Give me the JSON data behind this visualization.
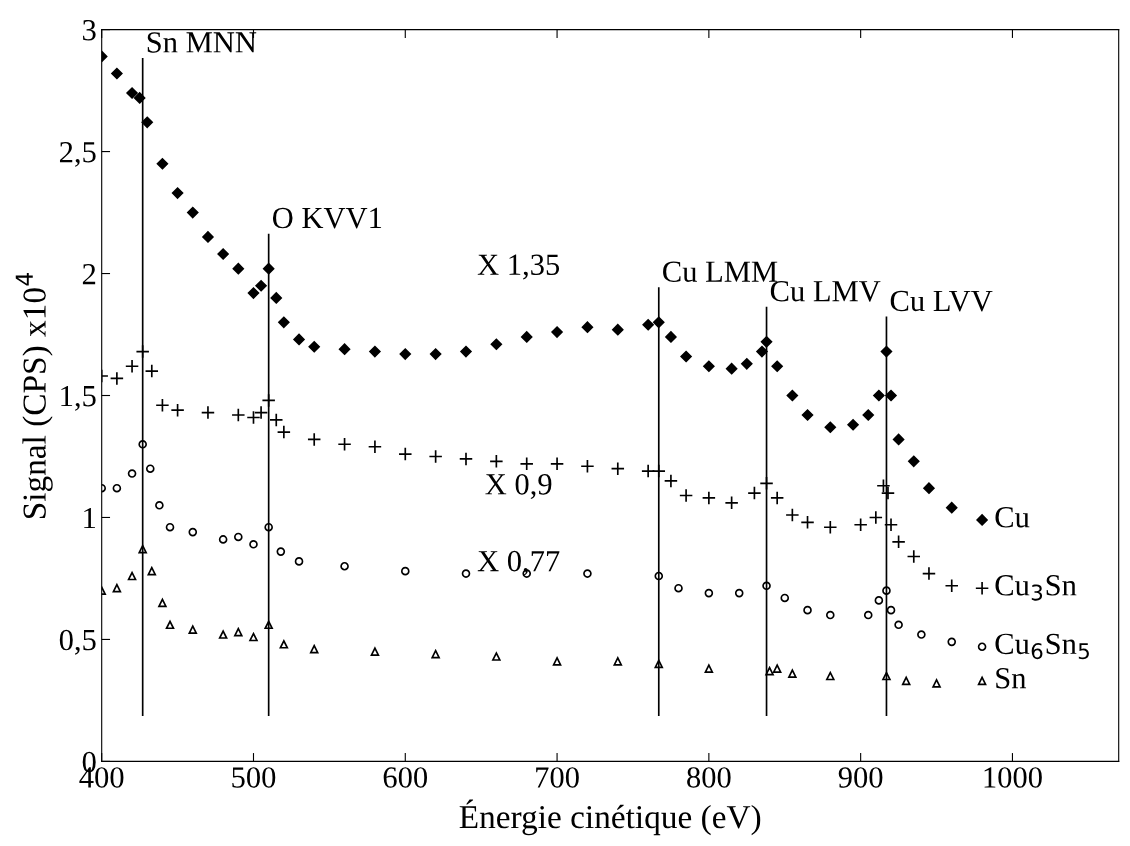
{
  "chart_data": {
    "type": "scatter",
    "xlabel": "Énergie cinétique (eV)",
    "ylabel": "Signal (CPS) x10$^{4}$",
    "xlim": [
      400,
      1070
    ],
    "xticks": [
      400,
      500,
      600,
      700,
      800,
      900,
      1000
    ],
    "ylim": [
      0,
      3
    ],
    "yticks": [
      0,
      {
        "value": 0.5,
        "label": "0,5"
      },
      1,
      {
        "value": 1.5,
        "label": "1,5"
      },
      2,
      {
        "value": 2.5,
        "label": "2,5"
      },
      3
    ],
    "grid": false,
    "legend": false,
    "series": [
      {
        "name": "Cu",
        "color": "#000000",
        "marker": "diamond",
        "x": [
          400,
          410,
          420,
          425,
          430,
          440,
          450,
          460,
          470,
          480,
          490,
          500,
          505,
          510,
          515,
          520,
          530,
          540,
          560,
          580,
          600,
          620,
          640,
          660,
          680,
          700,
          720,
          740,
          760,
          767,
          775,
          785,
          800,
          815,
          825,
          835,
          838,
          845,
          855,
          865,
          880,
          895,
          905,
          912,
          917,
          920,
          925,
          935,
          945,
          960,
          980
        ],
        "values": [
          2.89,
          2.82,
          2.74,
          2.72,
          2.62,
          2.45,
          2.33,
          2.25,
          2.15,
          2.08,
          2.02,
          1.92,
          1.95,
          2.02,
          1.9,
          1.8,
          1.73,
          1.7,
          1.69,
          1.68,
          1.67,
          1.67,
          1.68,
          1.71,
          1.74,
          1.76,
          1.78,
          1.77,
          1.79,
          1.8,
          1.74,
          1.66,
          1.62,
          1.61,
          1.63,
          1.68,
          1.72,
          1.62,
          1.5,
          1.42,
          1.37,
          1.38,
          1.42,
          1.5,
          1.68,
          1.5,
          1.32,
          1.23,
          1.12,
          1.04,
          0.99
        ]
      },
      {
        "name": "Cu$_{3}$Sn",
        "color": "#000000",
        "marker": "cross",
        "x": [
          400,
          410,
          420,
          427,
          433,
          440,
          450,
          470,
          490,
          500,
          505,
          510,
          515,
          520,
          540,
          560,
          580,
          600,
          620,
          640,
          660,
          680,
          700,
          720,
          740,
          760,
          767,
          775,
          785,
          800,
          815,
          830,
          838,
          845,
          855,
          865,
          880,
          900,
          910,
          915,
          918,
          920,
          925,
          935,
          945,
          960,
          980
        ],
        "values": [
          1.58,
          1.57,
          1.62,
          1.68,
          1.6,
          1.46,
          1.44,
          1.43,
          1.42,
          1.41,
          1.43,
          1.48,
          1.4,
          1.35,
          1.32,
          1.3,
          1.29,
          1.26,
          1.25,
          1.24,
          1.23,
          1.22,
          1.22,
          1.21,
          1.2,
          1.19,
          1.19,
          1.15,
          1.09,
          1.08,
          1.06,
          1.1,
          1.14,
          1.08,
          1.01,
          0.98,
          0.96,
          0.97,
          1.0,
          1.13,
          1.1,
          0.97,
          0.9,
          0.84,
          0.77,
          0.72,
          0.71
        ]
      },
      {
        "name": "Cu$_{6}$Sn$_{5}$",
        "color": "#000000",
        "marker": "circle",
        "x": [
          400,
          410,
          420,
          427,
          432,
          438,
          445,
          460,
          480,
          490,
          500,
          510,
          518,
          530,
          560,
          600,
          640,
          680,
          720,
          767,
          780,
          800,
          820,
          838,
          850,
          865,
          880,
          905,
          912,
          917,
          920,
          925,
          940,
          960,
          980
        ],
        "values": [
          1.12,
          1.12,
          1.18,
          1.3,
          1.2,
          1.05,
          0.96,
          0.94,
          0.91,
          0.92,
          0.89,
          0.96,
          0.86,
          0.82,
          0.8,
          0.78,
          0.77,
          0.77,
          0.77,
          0.76,
          0.71,
          0.69,
          0.69,
          0.72,
          0.67,
          0.62,
          0.6,
          0.6,
          0.66,
          0.7,
          0.62,
          0.56,
          0.52,
          0.49,
          0.47
        ]
      },
      {
        "name": "Sn",
        "color": "#000000",
        "marker": "triangle",
        "x": [
          400,
          410,
          420,
          427,
          433,
          440,
          445,
          460,
          480,
          490,
          500,
          510,
          520,
          540,
          580,
          620,
          660,
          700,
          740,
          767,
          800,
          840,
          845,
          855,
          880,
          917,
          930,
          950,
          980
        ],
        "values": [
          0.7,
          0.71,
          0.76,
          0.87,
          0.78,
          0.65,
          0.56,
          0.54,
          0.52,
          0.53,
          0.51,
          0.56,
          0.48,
          0.46,
          0.45,
          0.44,
          0.43,
          0.41,
          0.41,
          0.4,
          0.38,
          0.37,
          0.38,
          0.36,
          0.35,
          0.35,
          0.33,
          0.32,
          0.33
        ]
      }
    ],
    "ref_lines": [
      {
        "axis": "x",
        "value": 427,
        "label": "Sn MNN",
        "color": "#000000"
      },
      {
        "axis": "x",
        "value": 510,
        "label": "O KVV1",
        "color": "#000000"
      },
      {
        "axis": "x",
        "value": 767,
        "label": "Cu LMM",
        "color": "#000000"
      },
      {
        "axis": "x",
        "value": 838,
        "label": "Cu LMV",
        "color": "#000000"
      },
      {
        "axis": "x",
        "value": 917,
        "label": "Cu LVV",
        "color": "#000000"
      }
    ],
    "annotations": [
      "X 1,35",
      "X 0,9",
      "X 0,77"
    ]
  }
}
